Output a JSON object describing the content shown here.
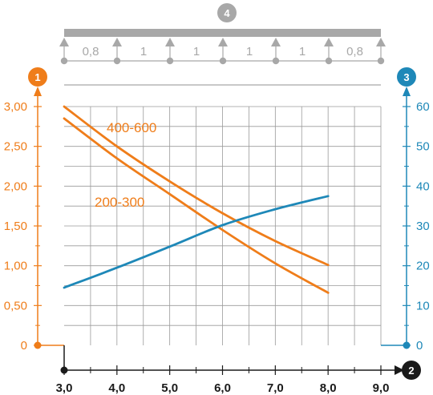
{
  "chart_data": {
    "type": "line",
    "title": "",
    "x_axis": {
      "badge": "2",
      "range": [
        3.0,
        9.0
      ],
      "ticks": [
        3.0,
        4.0,
        5.0,
        6.0,
        7.0,
        8.0,
        9.0
      ],
      "tick_labels": [
        "3,0",
        "4,0",
        "5,0",
        "6,0",
        "7,0",
        "8,0",
        "9,0"
      ]
    },
    "y_left": {
      "badge": "1",
      "range": [
        0,
        3.0
      ],
      "ticks": [
        0,
        0.5,
        1.0,
        1.5,
        2.0,
        2.5,
        3.0
      ],
      "tick_labels": [
        "0",
        "0,50",
        "1,00",
        "1,50",
        "2,00",
        "2,50",
        "3,00"
      ],
      "color": "#ef7d1a"
    },
    "y_right": {
      "badge": "3",
      "range": [
        0,
        60
      ],
      "ticks": [
        0,
        10,
        20,
        30,
        40,
        50,
        60
      ],
      "tick_labels": [
        "0",
        "10",
        "20",
        "30",
        "40",
        "50",
        "60"
      ],
      "color": "#1e88b8"
    },
    "support_diagram": {
      "badge": "4",
      "span_labels": [
        "0,8",
        "1",
        "1",
        "1",
        "1",
        "0,8"
      ]
    },
    "series": [
      {
        "name": "400-600",
        "axis": "left",
        "color": "#ef7d1a",
        "x": [
          3.0,
          4.0,
          5.0,
          6.0,
          7.0,
          8.0
        ],
        "y": [
          3.0,
          2.5,
          2.06,
          1.66,
          1.31,
          1.01
        ]
      },
      {
        "name": "200-300",
        "axis": "left",
        "color": "#ef7d1a",
        "x": [
          3.0,
          4.0,
          5.0,
          6.0,
          7.0,
          8.0
        ],
        "y": [
          2.85,
          2.35,
          1.9,
          1.45,
          1.03,
          0.66
        ]
      },
      {
        "name": "",
        "axis": "right",
        "color": "#1e88b8",
        "x": [
          3.0,
          4.0,
          5.0,
          6.0,
          7.0,
          8.0
        ],
        "y": [
          14.5,
          19.5,
          24.8,
          30.2,
          34.2,
          37.5
        ]
      }
    ],
    "grid": true,
    "badge_color_x": "#1a1a1a",
    "badge_color_top": "#a8a8a8"
  }
}
